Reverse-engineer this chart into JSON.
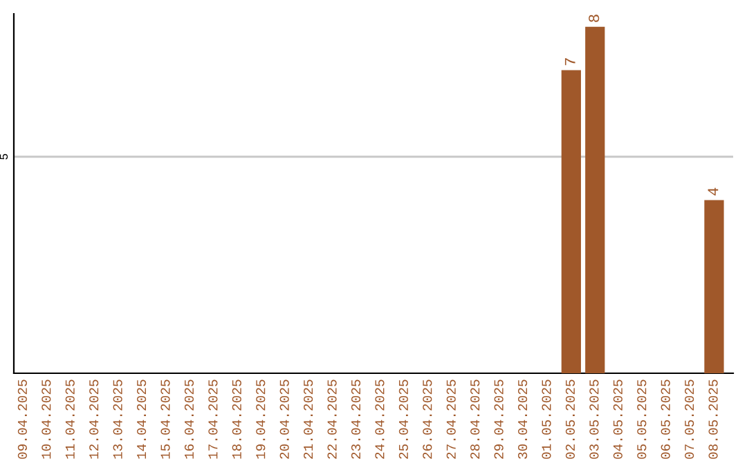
{
  "chart_data": {
    "type": "bar",
    "categories": [
      "09.04.2025",
      "10.04.2025",
      "11.04.2025",
      "12.04.2025",
      "13.04.2025",
      "14.04.2025",
      "15.04.2025",
      "16.04.2025",
      "17.04.2025",
      "18.04.2025",
      "19.04.2025",
      "20.04.2025",
      "21.04.2025",
      "22.04.2025",
      "23.04.2025",
      "24.04.2025",
      "25.04.2025",
      "26.04.2025",
      "27.04.2025",
      "28.04.2025",
      "29.04.2025",
      "30.04.2025",
      "01.05.2025",
      "02.05.2025",
      "03.05.2025",
      "04.05.2025",
      "05.05.2025",
      "06.05.2025",
      "07.05.2025",
      "08.05.2025"
    ],
    "values": [
      null,
      null,
      null,
      null,
      null,
      null,
      null,
      null,
      null,
      null,
      null,
      null,
      null,
      null,
      null,
      null,
      null,
      null,
      null,
      null,
      null,
      null,
      null,
      7,
      8,
      null,
      null,
      null,
      null,
      4
    ],
    "data_labels": true,
    "color": "#a0582a",
    "ylim": [
      0,
      8.3
    ],
    "yticks": [
      5
    ],
    "grid": "y"
  }
}
